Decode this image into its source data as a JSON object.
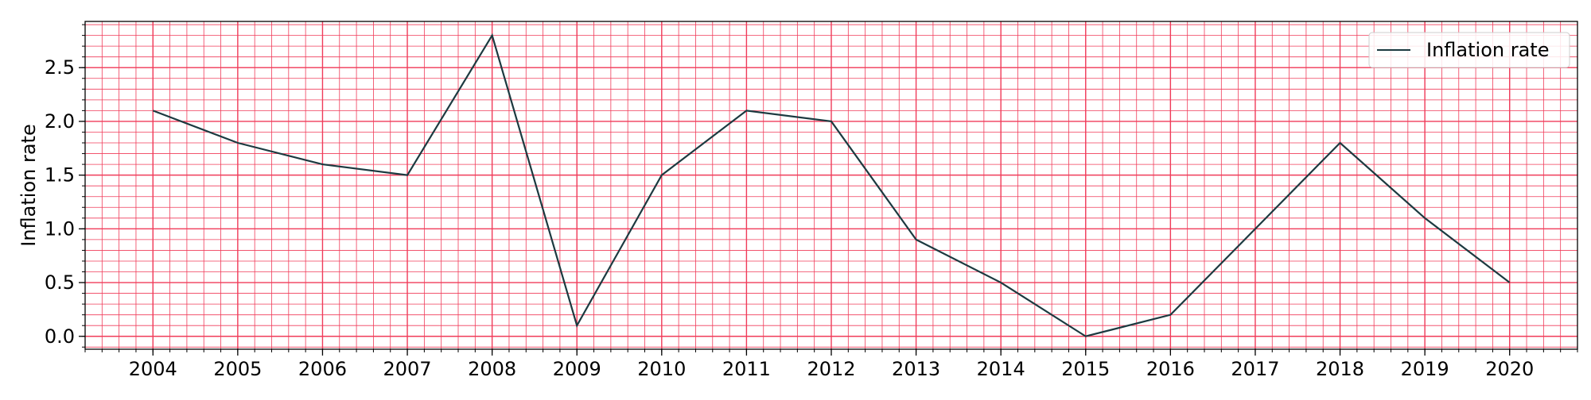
{
  "chart_data": {
    "type": "line",
    "title": "",
    "xlabel": "",
    "ylabel": "Inflation rate",
    "x": [
      2004,
      2005,
      2006,
      2007,
      2008,
      2009,
      2010,
      2011,
      2012,
      2013,
      2014,
      2015,
      2016,
      2017,
      2018,
      2019,
      2020
    ],
    "series": [
      {
        "name": "Inflation rate",
        "values": [
          2.1,
          1.8,
          1.6,
          1.5,
          2.8,
          0.1,
          1.5,
          2.1,
          2.0,
          0.9,
          0.5,
          0.0,
          0.2,
          1.0,
          1.8,
          1.1,
          0.5
        ],
        "color": "#1c3a40"
      }
    ],
    "xlim": [
      2003.2,
      2020.8
    ],
    "ylim": [
      -0.12,
      2.93
    ],
    "x_ticks": [
      2004,
      2005,
      2006,
      2007,
      2008,
      2009,
      2010,
      2011,
      2012,
      2013,
      2014,
      2015,
      2016,
      2017,
      2018,
      2019,
      2020
    ],
    "y_ticks": [
      0.0,
      0.5,
      1.0,
      1.5,
      2.0,
      2.5
    ],
    "y_tick_labels": [
      "0.0",
      "0.5",
      "1.0",
      "1.5",
      "2.0",
      "2.5"
    ],
    "grid": true,
    "minor_grid": true,
    "grid_color": "#f03c5a",
    "legend_position": "top-right"
  }
}
